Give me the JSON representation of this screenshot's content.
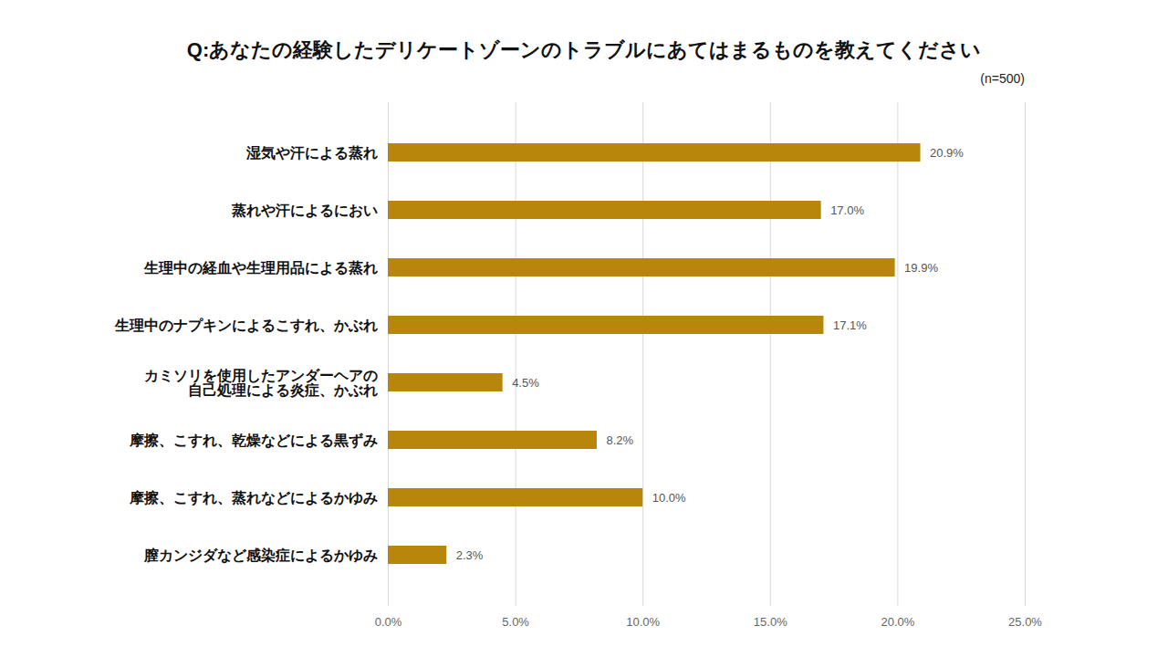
{
  "chart_data": {
    "type": "bar",
    "orientation": "horizontal",
    "title": "Q:あなたの経験したデリケートゾーンのトラブルにあてはまるものを教えてください",
    "subtitle": "(n=500)",
    "categories": [
      "湿気や汗による蒸れ",
      "蒸れや汗によるにおい",
      "生理中の経血や生理用品による蒸れ",
      "生理中のナプキンによるこすれ、かぶれ",
      "カミソリを使用したアンダーヘアの\n自己処理による炎症、かぶれ",
      "摩擦、こすれ、乾燥などによる黒ずみ",
      "摩擦、こすれ、蒸れなどによるかゆみ",
      "膣カンジダなど感染症によるかゆみ"
    ],
    "values": [
      20.9,
      17.0,
      19.9,
      17.1,
      4.5,
      8.2,
      10.0,
      2.3
    ],
    "value_labels": [
      "20.9%",
      "17.0%",
      "19.9%",
      "17.1%",
      "4.5%",
      "8.2%",
      "10.0%",
      "2.3%"
    ],
    "data_labels": true,
    "color": "#b8860b",
    "xlim": [
      0,
      25
    ],
    "xticks": [
      {
        "value": 0,
        "label": "0.0%"
      },
      {
        "value": 5,
        "label": "5.0%"
      },
      {
        "value": 10,
        "label": "10.0%"
      },
      {
        "value": 15,
        "label": "15.0%"
      },
      {
        "value": 20,
        "label": "20.0%"
      },
      {
        "value": 25,
        "label": "25.0%"
      }
    ],
    "grid": true
  }
}
